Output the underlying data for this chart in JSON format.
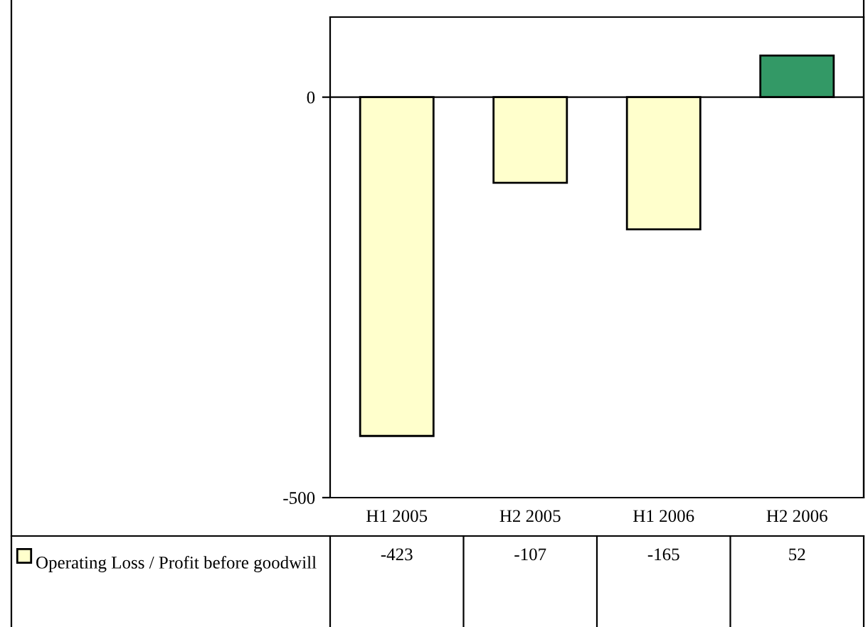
{
  "chart_data": {
    "type": "bar",
    "categories": [
      "H1 2005",
      "H2 2005",
      "H1 2006",
      "H2 2006"
    ],
    "series": [
      {
        "name": "Operating Loss / Profit before goodwill",
        "colors": [
          "#ffffcc",
          "#ffffcc",
          "#ffffcc",
          "#339966"
        ],
        "values": [
          -423,
          -107,
          -165,
          52
        ]
      }
    ],
    "ylim": [
      -500,
      100
    ],
    "yticks": [
      -500,
      0
    ],
    "grid": false,
    "data_labels": true,
    "legend": "bottom left",
    "ref_lines": [
      {
        "axis": "y",
        "value": 0
      }
    ]
  }
}
